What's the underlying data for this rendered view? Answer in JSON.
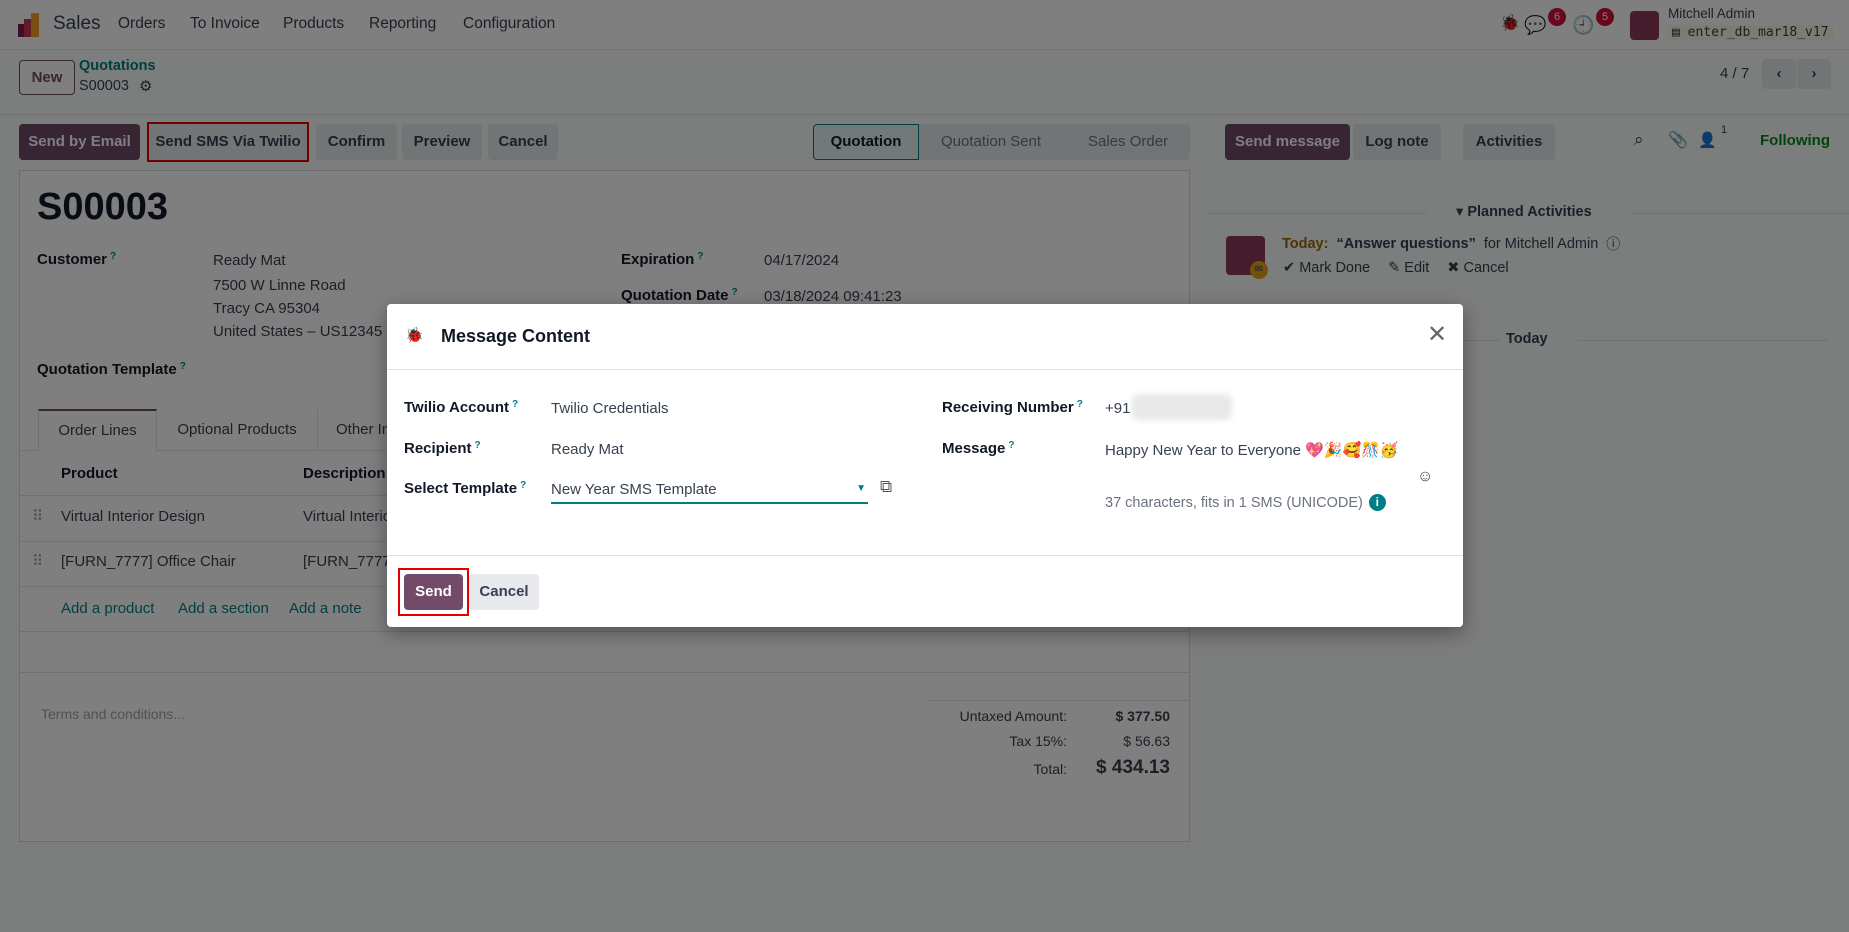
{
  "navbar": {
    "app": "Sales",
    "menu": [
      "Orders",
      "To Invoice",
      "Products",
      "Reporting",
      "Configuration"
    ],
    "messages_count": "6",
    "activities_count": "5",
    "user": "Mitchell Admin",
    "database": "enter_db_mar18_v17"
  },
  "control": {
    "new_label": "New",
    "breadcrumb_parent": "Quotations",
    "record": "S00003",
    "pager": "4 / 7"
  },
  "actions": {
    "send_email": "Send by Email",
    "send_sms": "Send SMS Via Twilio",
    "confirm": "Confirm",
    "preview": "Preview",
    "cancel": "Cancel"
  },
  "statusbar": {
    "stages": [
      "Quotation",
      "Quotation Sent",
      "Sales Order"
    ],
    "active": "Quotation"
  },
  "chatter": {
    "send_message": "Send message",
    "log_note": "Log note",
    "activities": "Activities",
    "followers_count": "1",
    "following": "Following",
    "planned_title": "Planned Activities",
    "activity_when": "Today:",
    "activity_title": "“Answer questions”",
    "activity_for": "for Mitchell Admin",
    "mark_done": "Mark Done",
    "edit": "Edit",
    "cancel": "Cancel",
    "divider_today": "Today"
  },
  "form": {
    "title": "S00003",
    "customer_label": "Customer",
    "customer_lines": [
      "Ready Mat",
      "7500 W Linne Road",
      "Tracy CA 95304",
      "United States – US12345"
    ],
    "expiration_label": "Expiration",
    "expiration": "04/17/2024",
    "quotation_date_label": "Quotation Date",
    "quotation_date": "03/18/2024 09:41:23",
    "template_label": "Quotation Template",
    "tabs": [
      "Order Lines",
      "Optional Products",
      "Other Info"
    ],
    "columns": [
      "Product",
      "Description"
    ],
    "rows": [
      {
        "product": "Virtual Interior Design",
        "description": "Virtual Interior Design"
      },
      {
        "product": "[FURN_7777] Office Chair",
        "description": "[FURN_7777] Office Chair"
      }
    ],
    "add_product": "Add a product",
    "add_section": "Add a section",
    "add_note": "Add a note",
    "terms_placeholder": "Terms and conditions...",
    "untaxed_label": "Untaxed Amount:",
    "untaxed": "$ 377.50",
    "tax_label": "Tax 15%:",
    "tax": "$ 56.63",
    "total_label": "Total:",
    "total": "$ 434.13"
  },
  "dialog": {
    "title": "Message Content",
    "twilio_account_label": "Twilio Account",
    "twilio_account": "Twilio Credentials",
    "recipient_label": "Recipient",
    "recipient": "Ready Mat",
    "template_label": "Select Template",
    "template": "New Year SMS Template",
    "receiving_label": "Receiving Number",
    "receiving_prefix": "+91",
    "message_label": "Message",
    "message": "Happy New Year to Everyone 💖🎉🥰🎊🥳",
    "char_info": "37 characters, fits in 1 SMS (UNICODE)",
    "send": "Send",
    "cancel": "Cancel"
  },
  "colors": {
    "brand": "#714b67",
    "teal": "#017e84",
    "highlight": "#e00000",
    "following": "#008818"
  }
}
